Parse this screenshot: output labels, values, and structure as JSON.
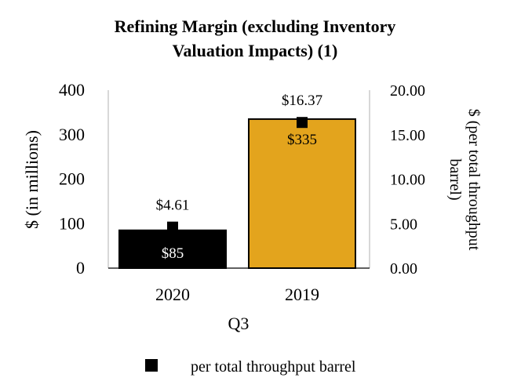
{
  "chart_data": {
    "type": "bar",
    "title_lines": [
      "Refining Margin (excluding Inventory",
      "Valuation Impacts) (1)"
    ],
    "categories": [
      "2020",
      "2019"
    ],
    "xlabel": "Q3",
    "ylabel_left": "$ (in millions)",
    "ylabel_right_lines": [
      "$ (per total throughput",
      "barrel)"
    ],
    "ylim_left": [
      0,
      400
    ],
    "ylim_right": [
      0,
      20
    ],
    "left_ticks": [
      "400",
      "300",
      "200",
      "100",
      "0"
    ],
    "left_tick_values": [
      400,
      300,
      200,
      100,
      0
    ],
    "right_ticks": [
      "20.00",
      "15.00",
      "10.00",
      "5.00",
      "0.00"
    ],
    "right_tick_values": [
      20,
      15,
      10,
      5,
      0
    ],
    "series": [
      {
        "name": "Refining Margin ($ in millions)",
        "kind": "bar",
        "axis": "left",
        "values": [
          85,
          335
        ],
        "labels": [
          "$85",
          "$335"
        ],
        "colors": [
          "#000000",
          "#E3A41D"
        ]
      },
      {
        "name": "per total throughput barrel",
        "kind": "marker",
        "axis": "right",
        "values": [
          4.61,
          16.37
        ],
        "labels": [
          "$4.61",
          "$16.37"
        ],
        "color": "#000000"
      }
    ],
    "legend": {
      "label": "per total throughput barrel",
      "position": "bottom"
    }
  }
}
